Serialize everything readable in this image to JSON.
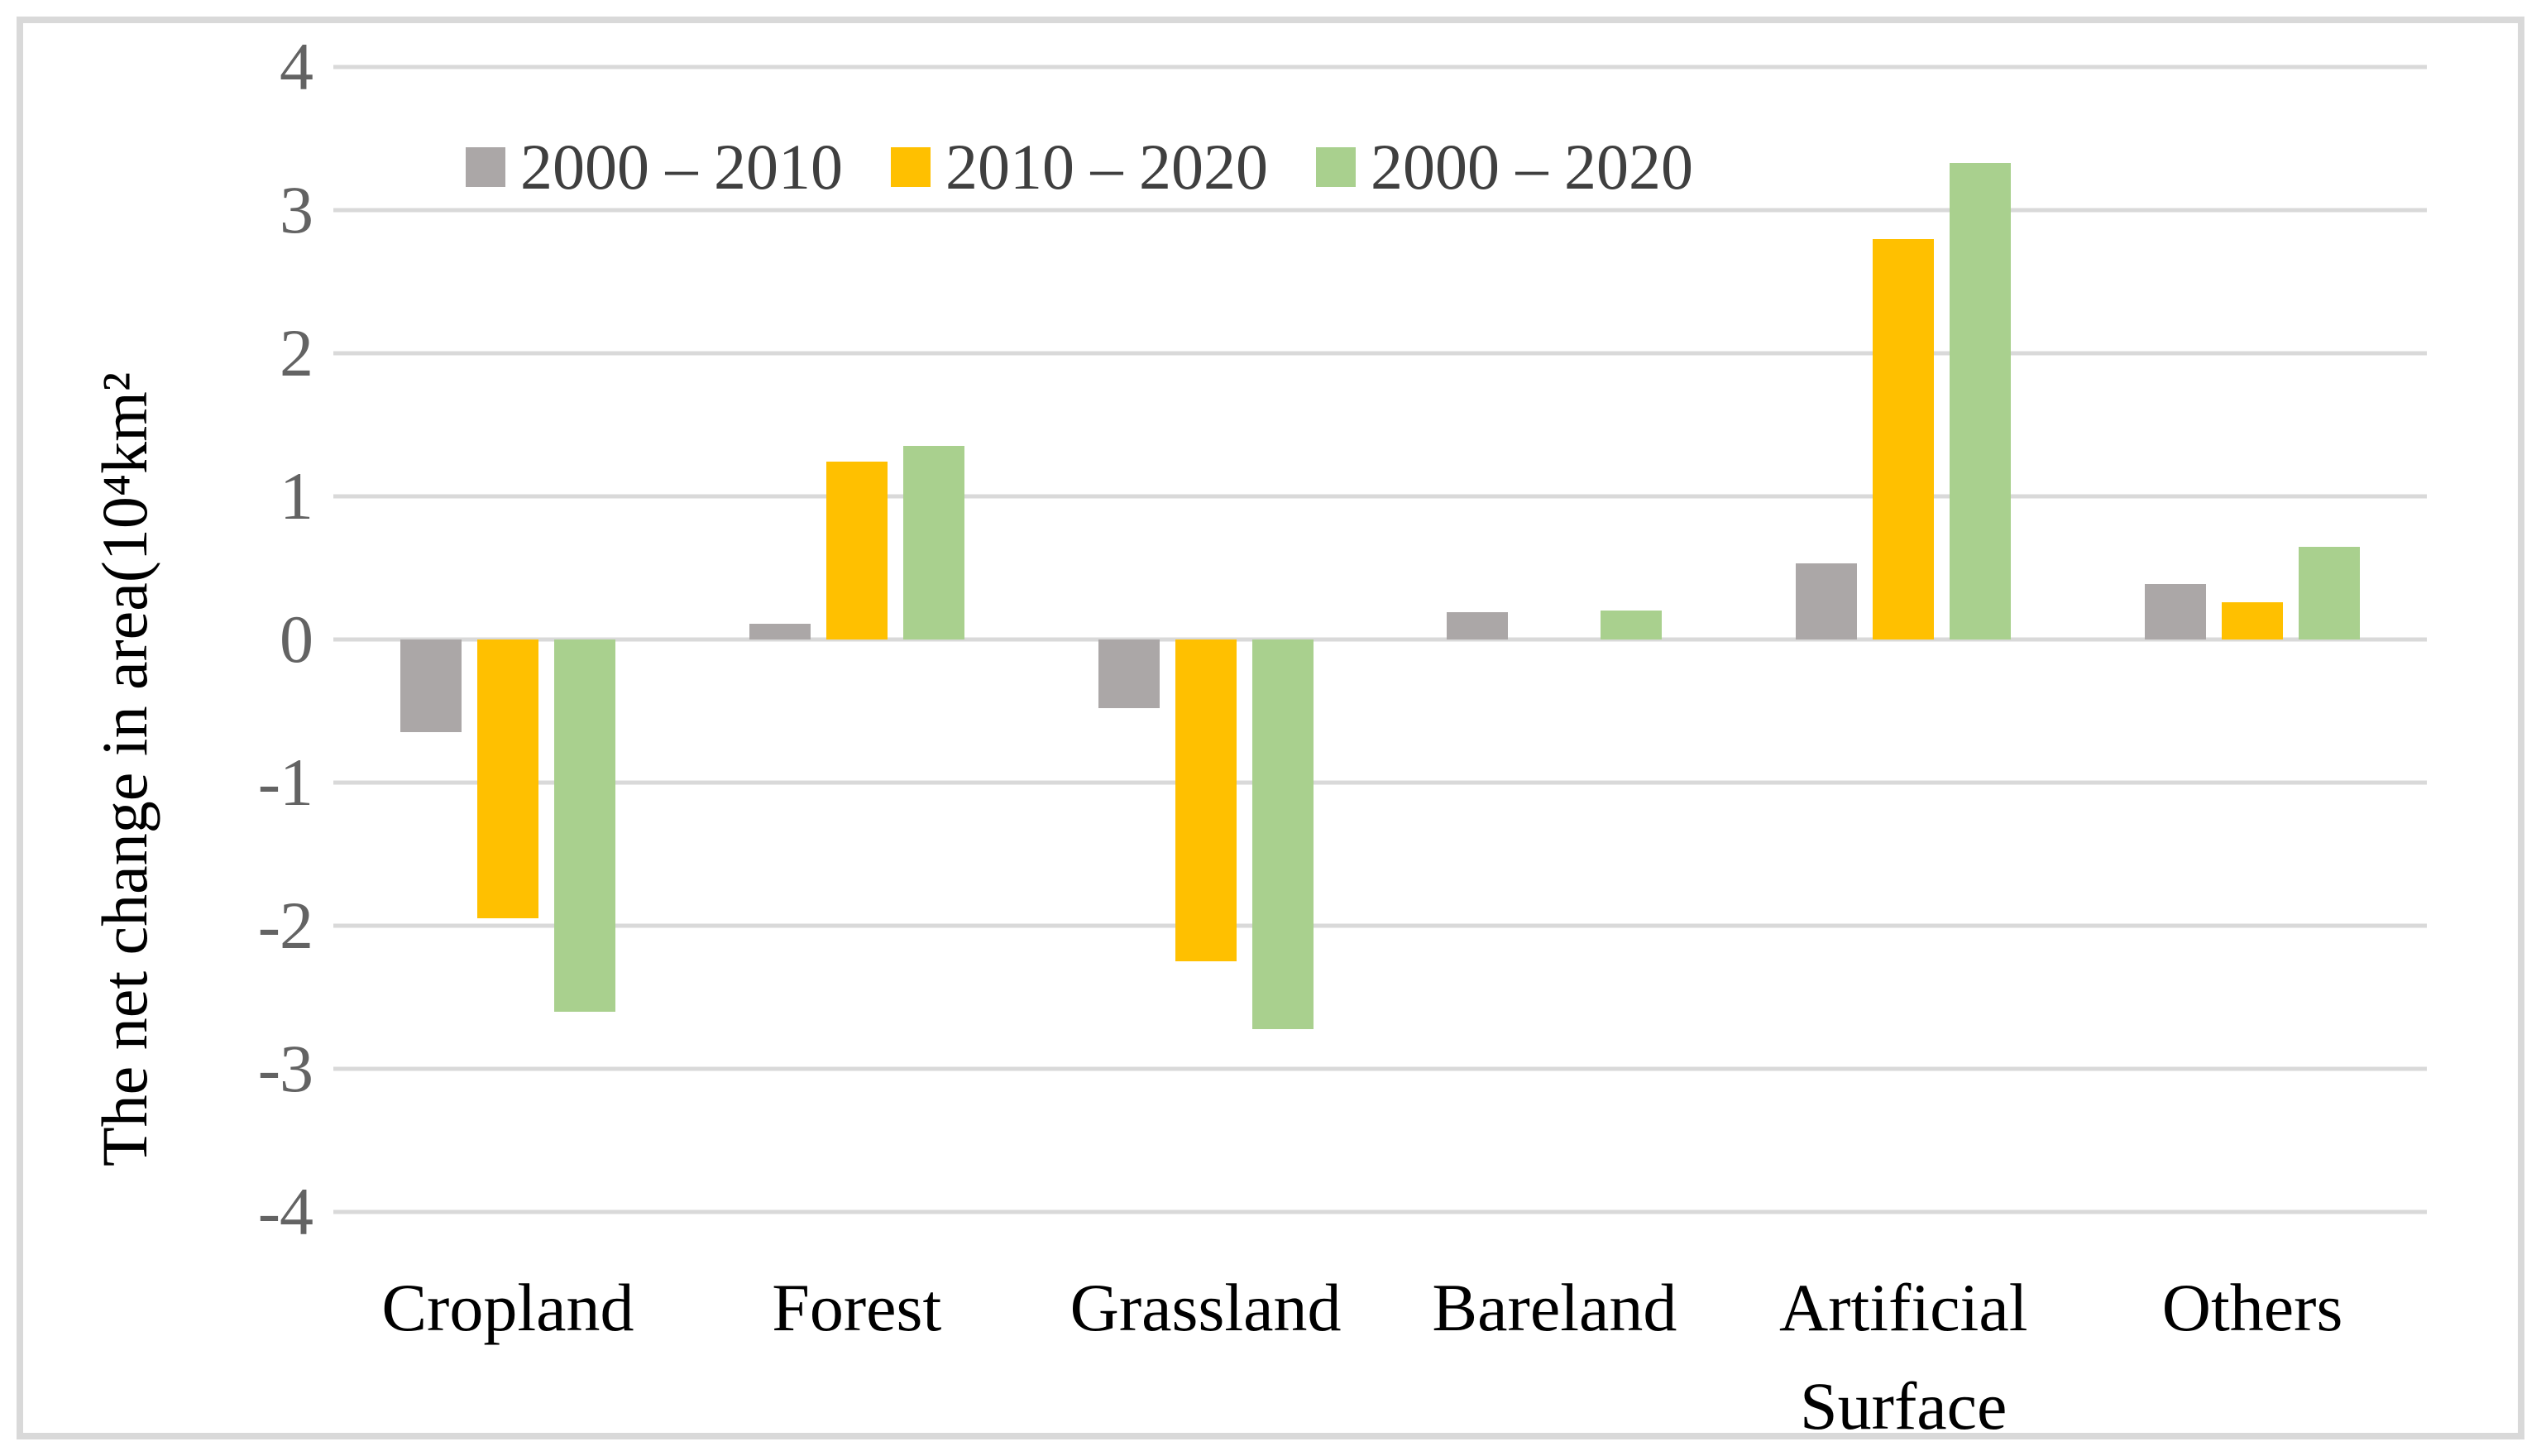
{
  "chart_data": {
    "type": "bar",
    "title": "",
    "ylabel": "The net change in area(10⁴km²",
    "xlabel": "",
    "categories": [
      "Cropland",
      "Forest",
      "Grassland",
      "Bareland",
      "Artificial Surface",
      "Others"
    ],
    "series": [
      {
        "name": "2000 – 2010",
        "color": "#ABA7A7",
        "values": [
          -0.65,
          0.11,
          -0.48,
          0.19,
          0.53,
          0.39
        ]
      },
      {
        "name": "2010 – 2020",
        "color": "#FFC000",
        "values": [
          -1.95,
          1.24,
          -2.25,
          0.0,
          2.8,
          0.26
        ]
      },
      {
        "name": "2000 – 2020",
        "color": "#A9D08E",
        "values": [
          -2.6,
          1.35,
          -2.72,
          0.2,
          3.33,
          0.65
        ]
      }
    ],
    "ylim": [
      -4,
      4
    ],
    "ytick_step": 1,
    "yticks": [
      "4",
      "3",
      "2",
      "1",
      "0",
      "-1",
      "-2",
      "-3",
      "-4"
    ],
    "grid": "horizontal",
    "legend_position": "top-left-inside",
    "colors": {
      "gridline": "#D9D9D9",
      "frame_border": "#D9D9D9",
      "tick_text": "#636363",
      "legend_text": "#3F3F3F",
      "category_text": "#000000",
      "background": "#FFFFFF"
    }
  }
}
